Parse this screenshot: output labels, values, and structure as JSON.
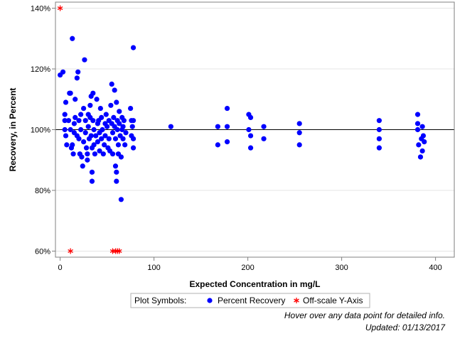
{
  "chart_data": {
    "type": "scatter",
    "xlabel": "Expected Concentration in mg/L",
    "ylabel": "Recovery, in Percent",
    "xlim": [
      -5,
      420
    ],
    "ylim": [
      58,
      142
    ],
    "xticks": [
      0,
      100,
      200,
      300,
      400
    ],
    "yticks": [
      60,
      80,
      100,
      120,
      140
    ],
    "ytick_labels": [
      "60%",
      "80%",
      "100%",
      "120%",
      "140%"
    ],
    "reference_line_y": 100,
    "grid": "horizontal",
    "legend": {
      "title": "Plot Symbols:",
      "entries": [
        {
          "label": "Percent Recovery",
          "marker": "dot",
          "color": "#0000ff"
        },
        {
          "label": "Off-scale Y-Axis",
          "marker": "asterisk",
          "color": "#ff0000"
        }
      ],
      "placement": "bottom-center"
    },
    "series": [
      {
        "name": "Percent Recovery",
        "color": "#0000ff",
        "points": [
          [
            0,
            118
          ],
          [
            3,
            119
          ],
          [
            5,
            105
          ],
          [
            5,
            103
          ],
          [
            5,
            100
          ],
          [
            6,
            109
          ],
          [
            6,
            98
          ],
          [
            7,
            95
          ],
          [
            9,
            103
          ],
          [
            10,
            112
          ],
          [
            11,
            112
          ],
          [
            11,
            100
          ],
          [
            12,
            94
          ],
          [
            13,
            95
          ],
          [
            13,
            130
          ],
          [
            14,
            92
          ],
          [
            15,
            99
          ],
          [
            15,
            102
          ],
          [
            16,
            104
          ],
          [
            16,
            110
          ],
          [
            18,
            98
          ],
          [
            18,
            117
          ],
          [
            19,
            119
          ],
          [
            20,
            103
          ],
          [
            20,
            97
          ],
          [
            21,
            92
          ],
          [
            22,
            100
          ],
          [
            22,
            105
          ],
          [
            23,
            91
          ],
          [
            24,
            88
          ],
          [
            25,
            107
          ],
          [
            25,
            96
          ],
          [
            26,
            123
          ],
          [
            27,
            103
          ],
          [
            27,
            99
          ],
          [
            28,
            94
          ],
          [
            29,
            92
          ],
          [
            29,
            90
          ],
          [
            30,
            105
          ],
          [
            30,
            101
          ],
          [
            31,
            97
          ],
          [
            32,
            108
          ],
          [
            32,
            104
          ],
          [
            33,
            111
          ],
          [
            33,
            98
          ],
          [
            34,
            94
          ],
          [
            34,
            86
          ],
          [
            34,
            83
          ],
          [
            35,
            112
          ],
          [
            35,
            103
          ],
          [
            36,
            100
          ],
          [
            36,
            95
          ],
          [
            37,
            92
          ],
          [
            38,
            98
          ],
          [
            39,
            110
          ],
          [
            40,
            102
          ],
          [
            40,
            96
          ],
          [
            41,
            103
          ],
          [
            42,
            99
          ],
          [
            42,
            93
          ],
          [
            43,
            107
          ],
          [
            44,
            104
          ],
          [
            44,
            97
          ],
          [
            45,
            100
          ],
          [
            46,
            92
          ],
          [
            47,
            95
          ],
          [
            48,
            102
          ],
          [
            48,
            98
          ],
          [
            49,
            105
          ],
          [
            50,
            101
          ],
          [
            51,
            94
          ],
          [
            52,
            103
          ],
          [
            52,
            97
          ],
          [
            53,
            93
          ],
          [
            54,
            108
          ],
          [
            55,
            115
          ],
          [
            55,
            102
          ],
          [
            56,
            99
          ],
          [
            56,
            92
          ],
          [
            57,
            104
          ],
          [
            58,
            113
          ],
          [
            58,
            101
          ],
          [
            59,
            97
          ],
          [
            59,
            88
          ],
          [
            60,
            86
          ],
          [
            60,
            83
          ],
          [
            60,
            109
          ],
          [
            61,
            103
          ],
          [
            61,
            100
          ],
          [
            62,
            95
          ],
          [
            62,
            92
          ],
          [
            63,
            106
          ],
          [
            63,
            102
          ],
          [
            64,
            98
          ],
          [
            65,
            77
          ],
          [
            65,
            91
          ],
          [
            66,
            104
          ],
          [
            66,
            100
          ],
          [
            67,
            97
          ],
          [
            67,
            101
          ],
          [
            68,
            103
          ],
          [
            69,
            95
          ],
          [
            70,
            99
          ],
          [
            75,
            107
          ],
          [
            76,
            103
          ],
          [
            76,
            98
          ],
          [
            77,
            101
          ],
          [
            78,
            127
          ],
          [
            78,
            97
          ],
          [
            78,
            94
          ],
          [
            78,
            103
          ],
          [
            118,
            101
          ],
          [
            168,
            101
          ],
          [
            168,
            95
          ],
          [
            178,
            107
          ],
          [
            178,
            101
          ],
          [
            178,
            96
          ],
          [
            201,
            105
          ],
          [
            201,
            100
          ],
          [
            203,
            104
          ],
          [
            203,
            98
          ],
          [
            203,
            94
          ],
          [
            217,
            101
          ],
          [
            217,
            97
          ],
          [
            255,
            102
          ],
          [
            255,
            99
          ],
          [
            255,
            95
          ],
          [
            340,
            103
          ],
          [
            340,
            100
          ],
          [
            340,
            97
          ],
          [
            340,
            94
          ],
          [
            381,
            105
          ],
          [
            381,
            102
          ],
          [
            381,
            100
          ],
          [
            382,
            95
          ],
          [
            384,
            91
          ],
          [
            385,
            97
          ],
          [
            386,
            101
          ],
          [
            386,
            93
          ],
          [
            387,
            98
          ],
          [
            388,
            96
          ]
        ]
      },
      {
        "name": "Off-scale Y-Axis",
        "color": "#ff0000",
        "points": [
          [
            0,
            140
          ],
          [
            11,
            60
          ],
          [
            56,
            60
          ],
          [
            59,
            60
          ],
          [
            61,
            60
          ],
          [
            63,
            60
          ]
        ]
      }
    ]
  },
  "footnotes": {
    "hover_note": "Hover over any data point for detailed info.",
    "updated": "Updated: 01/13/2017"
  }
}
